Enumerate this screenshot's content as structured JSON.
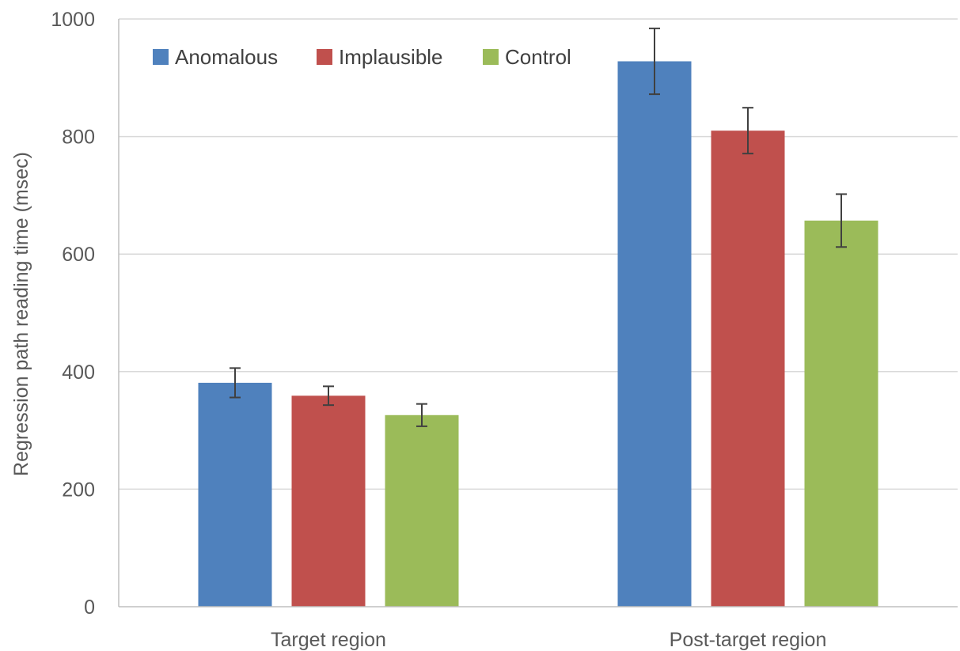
{
  "chart_data": {
    "type": "bar",
    "title": "",
    "xlabel": "",
    "ylabel": "Regression path reading time (msec)",
    "ylim": [
      0,
      1000
    ],
    "yticks": [
      0,
      200,
      400,
      600,
      800,
      1000
    ],
    "grid": true,
    "legend_position": "top-left",
    "categories": [
      "Target region",
      "Post-target region"
    ],
    "series": [
      {
        "name": "Anomalous",
        "color": "#4f81bd",
        "values": [
          381,
          928
        ],
        "error": [
          25,
          56
        ]
      },
      {
        "name": "Implausible",
        "color": "#c0504d",
        "values": [
          359,
          810
        ],
        "error": [
          16,
          39
        ]
      },
      {
        "name": "Control",
        "color": "#9bbb59",
        "values": [
          326,
          657
        ],
        "error": [
          19,
          45
        ]
      }
    ]
  }
}
